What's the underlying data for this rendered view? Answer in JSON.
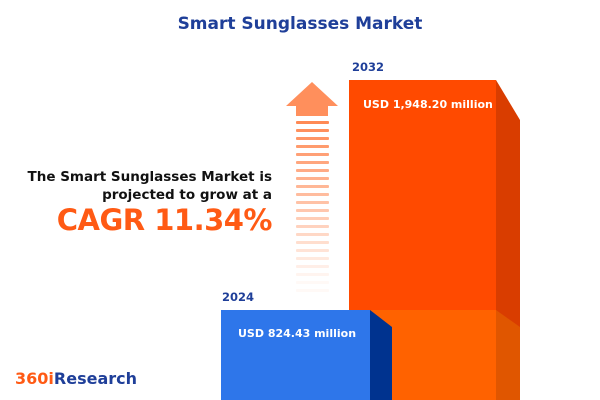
{
  "title": "Smart Sunglasses Market",
  "lead_line1": "The Smart Sunglasses Market is",
  "lead_line2": "projected to grow at a",
  "cagr": "CAGR 11.34%",
  "logo": {
    "part1": "360i",
    "part2": "Research"
  },
  "colors": {
    "title": "#1f3f99",
    "accent": "#ff5a14",
    "bar_2024": "#2e76ea",
    "bar_2032": "#ff4a00"
  },
  "arrow_icon": "up-arrow-icon",
  "chart_data": {
    "type": "bar",
    "categories": [
      "2024",
      "2032"
    ],
    "values": [
      824.43,
      1948.2
    ],
    "value_labels": [
      "USD 824.43 million",
      "USD 1,948.20 million"
    ],
    "unit": "USD million"
  }
}
